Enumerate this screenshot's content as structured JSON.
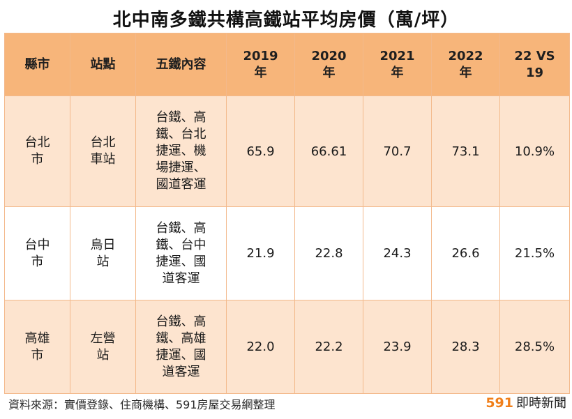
{
  "title": "北中南多鐵共構高鐵站平均房價（萬/坪）",
  "headers": [
    "縣市",
    "站點",
    "五鐵內容",
    "2019\n年",
    "2020\n年",
    "2021\n年",
    "2022\n年",
    "22 VS\n19"
  ],
  "rows": [
    {
      "city": "台北\n市",
      "station": "台北\n車站",
      "lines": "台鐵、高\n鐵、台北\n捷運、機\n場捷運、\n國道客運",
      "y2019": "65.9",
      "y2020": "66.61",
      "y2021": "70.7",
      "y2022": "73.1",
      "change": "10.9%"
    },
    {
      "city": "台中\n市",
      "station": "烏日\n站",
      "lines": "台鐵、高\n鐵、台中\n捷運、國\n道客運",
      "y2019": "21.9",
      "y2020": "22.8",
      "y2021": "24.3",
      "y2022": "26.6",
      "change": "21.5%"
    },
    {
      "city": "高雄\n市",
      "station": "左營\n站",
      "lines": "台鐵、高\n鐵、高雄\n捷運、國\n道客運",
      "y2019": "22.0",
      "y2020": "22.2",
      "y2021": "23.9",
      "y2022": "28.3",
      "change": "28.5%"
    }
  ],
  "source": "資料來源：實價登錄、住商機構、591房屋交易網整理",
  "brand": {
    "num": "591",
    "text": "即時新聞"
  },
  "colors": {
    "header_bg": "#f7b57a",
    "row_alt_bg": "#fde4cf",
    "brand_orange": "#f07f1a"
  }
}
